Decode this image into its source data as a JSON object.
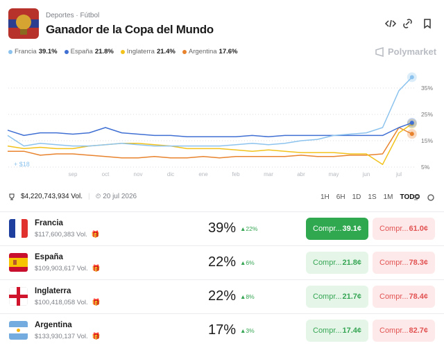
{
  "header": {
    "breadcrumb": [
      "Deportes",
      "Fútbol"
    ],
    "title": "Ganador de la Copa del Mundo"
  },
  "brand": "Polymarket",
  "chart_data": {
    "type": "line",
    "x": [
      -1,
      -0.5,
      0,
      0.5,
      1,
      1.5,
      2,
      2.5,
      3,
      3.5,
      4,
      4.5,
      5,
      5.5,
      6,
      6.5,
      7,
      7.5,
      8,
      8.5,
      9,
      9.5,
      10,
      10.5,
      11,
      11.4
    ],
    "series": [
      {
        "name": "Francia",
        "legend_label": "39.1%",
        "color": "#8cc3ee",
        "values": [
          17,
          13,
          14,
          13.5,
          13,
          13,
          13.5,
          14,
          13.5,
          13,
          13,
          13,
          13,
          13,
          13.5,
          14,
          13.5,
          14,
          15,
          15.5,
          17,
          17.5,
          18,
          20,
          34,
          39.1
        ]
      },
      {
        "name": "España",
        "legend_label": "21.8%",
        "color": "#3f6fd3",
        "values": [
          19,
          17,
          18,
          18,
          17.5,
          18,
          20,
          18,
          17.5,
          17,
          17,
          16.5,
          16.5,
          16.5,
          16.5,
          17,
          16.5,
          17,
          17,
          17,
          17,
          17,
          17,
          17,
          20,
          21.8
        ]
      },
      {
        "name": "Inglaterra",
        "legend_label": "21.4%",
        "color": "#f2c21b",
        "values": [
          13,
          12,
          12.5,
          12,
          12,
          13,
          13.5,
          14,
          14,
          13.5,
          13,
          12,
          12,
          12,
          11.5,
          11,
          11.5,
          11,
          10.5,
          10.5,
          10.5,
          10,
          10,
          6,
          18,
          21.4
        ]
      },
      {
        "name": "Argentina",
        "legend_label": "17.6%",
        "color": "#e8822c",
        "values": [
          11,
          11,
          9.5,
          10,
          10,
          9.5,
          9,
          8.5,
          8.5,
          9,
          8.5,
          8.5,
          9,
          8.5,
          9,
          9,
          9,
          9,
          9.5,
          9,
          9,
          9.5,
          9.5,
          10,
          20,
          17.6
        ]
      }
    ],
    "xlim": [
      -1,
      11.5
    ],
    "xticks": [
      {
        "value": 1,
        "label": "sep"
      },
      {
        "value": 2,
        "label": "oct"
      },
      {
        "value": 3,
        "label": "nov"
      },
      {
        "value": 4,
        "label": "dic"
      },
      {
        "value": 5,
        "label": "ene"
      },
      {
        "value": 6,
        "label": "feb"
      },
      {
        "value": 7,
        "label": "mar"
      },
      {
        "value": 8,
        "label": "abr"
      },
      {
        "value": 9,
        "label": "may"
      },
      {
        "value": 10,
        "label": "jun"
      },
      {
        "value": 11,
        "label": "jul"
      }
    ],
    "ylim": [
      3,
      42
    ],
    "yticks": [
      {
        "value": 5,
        "label": "5%"
      },
      {
        "value": 15,
        "label": "15%"
      },
      {
        "value": 25,
        "label": "25%"
      },
      {
        "value": 35,
        "label": "35%"
      }
    ],
    "grid": true,
    "annotation": "+ $18"
  },
  "stats": {
    "volume": "$4,220,743,934 Vol.",
    "date": "20 jul 2026"
  },
  "timeframes": [
    "1H",
    "6H",
    "1D",
    "1S",
    "1M",
    "TODO"
  ],
  "outcomes": [
    {
      "name": "Francia",
      "volume": "$117,600,383 Vol.",
      "percent": "39%",
      "change": "22%",
      "buy_label": "Compr...",
      "buy": "39.1¢",
      "sell_label": "Compr...",
      "sell": "61.0¢"
    },
    {
      "name": "España",
      "volume": "$109,903,617 Vol.",
      "percent": "22%",
      "change": "6%",
      "buy_label": "Compr...",
      "buy": "21.8¢",
      "sell_label": "Compr...",
      "sell": "78.3¢"
    },
    {
      "name": "Inglaterra",
      "volume": "$100,418,058 Vol.",
      "percent": "22%",
      "change": "8%",
      "buy_label": "Compr...",
      "buy": "21.7¢",
      "sell_label": "Compr...",
      "sell": "78.4¢"
    },
    {
      "name": "Argentina",
      "volume": "$133,930,137 Vol.",
      "percent": "17%",
      "change": "3%",
      "buy_label": "Compr...",
      "buy": "17.4¢",
      "sell_label": "Compr...",
      "sell": "82.7¢"
    }
  ]
}
